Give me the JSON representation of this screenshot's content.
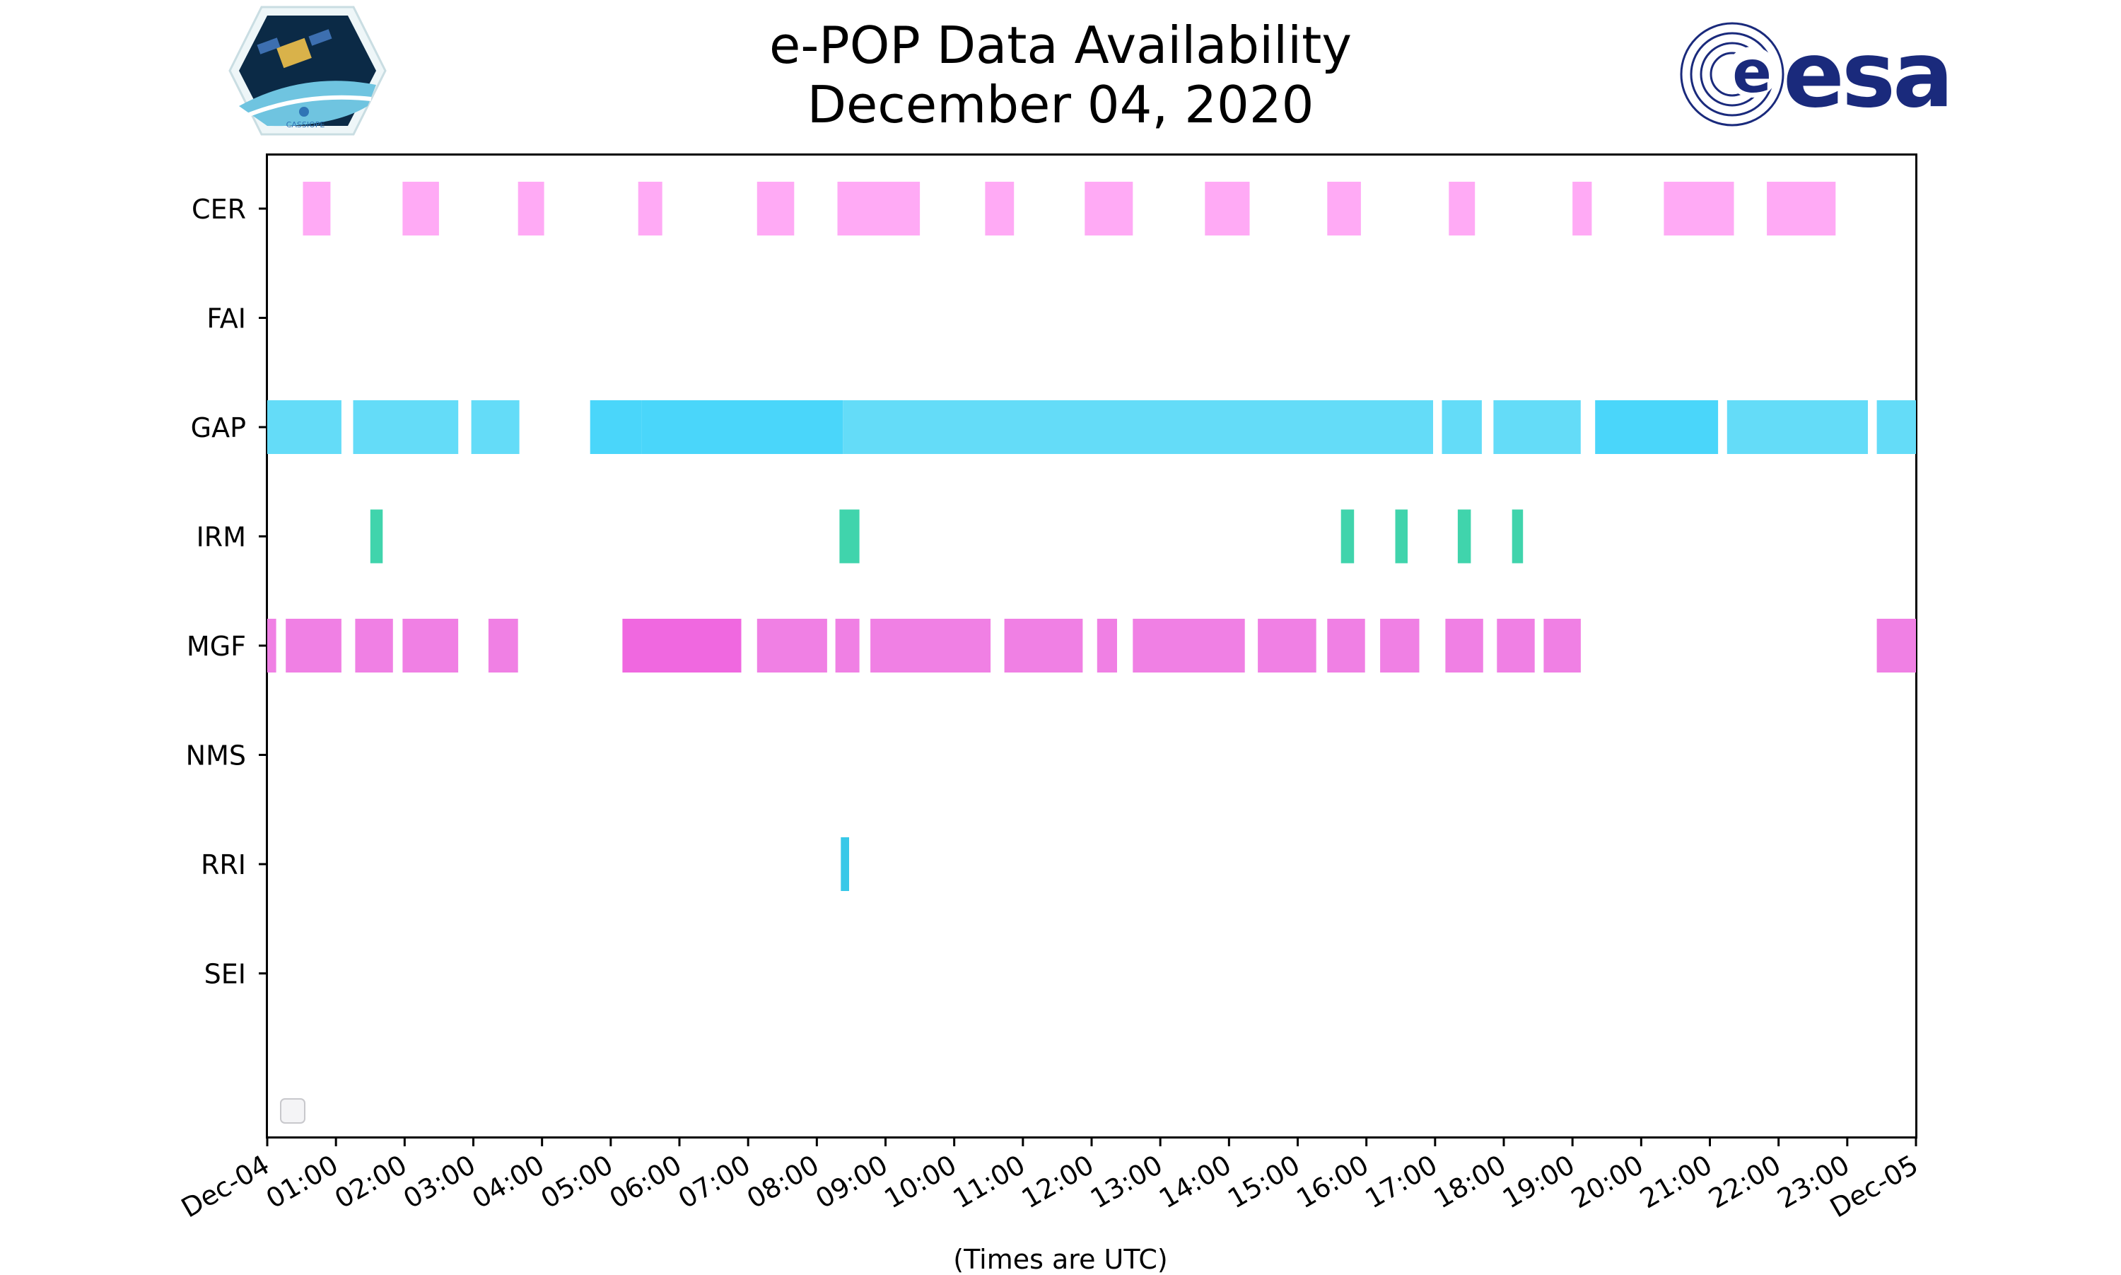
{
  "chart_data": {
    "type": "timeline",
    "title_lines": [
      "e-POP Data Availability",
      "December 04, 2020"
    ],
    "xlabel": "(Times are UTC)",
    "x_range_hours": [
      0,
      24
    ],
    "x_tick_labels": [
      "Dec-04",
      "01:00",
      "02:00",
      "03:00",
      "04:00",
      "05:00",
      "06:00",
      "07:00",
      "08:00",
      "09:00",
      "10:00",
      "11:00",
      "12:00",
      "13:00",
      "14:00",
      "15:00",
      "16:00",
      "17:00",
      "18:00",
      "19:00",
      "20:00",
      "21:00",
      "22:00",
      "23:00",
      "Dec-05"
    ],
    "categories": [
      "CER",
      "FAI",
      "GAP",
      "IRM",
      "MGF",
      "NMS",
      "RRI",
      "SEI"
    ],
    "colors": {
      "CER": "#ffaaf5",
      "FAI": "#ffaaf5",
      "GAP": "#64dcf8",
      "GAP_dark": "#4ad6fa",
      "IRM": "#40d4ac",
      "MGF": "#f080e4",
      "MGF_dark": "#f068e0",
      "NMS": "#f080e4",
      "RRI": "#38c8e8",
      "SEI": "#f080e4"
    },
    "series": [
      {
        "name": "CER",
        "intervals": [
          [
            0.52,
            0.92
          ],
          [
            1.97,
            2.5
          ],
          [
            3.65,
            4.03
          ],
          [
            5.4,
            5.75
          ],
          [
            7.13,
            7.67
          ],
          [
            8.3,
            9.5
          ],
          [
            10.45,
            10.87
          ],
          [
            11.9,
            12.6
          ],
          [
            13.65,
            14.3
          ],
          [
            15.43,
            15.92
          ],
          [
            17.2,
            17.58
          ],
          [
            19.0,
            19.28
          ],
          [
            20.33,
            21.35
          ],
          [
            21.83,
            22.83
          ]
        ]
      },
      {
        "name": "FAI",
        "intervals": []
      },
      {
        "name": "GAP",
        "intervals": [
          [
            0.0,
            1.08
          ],
          [
            1.25,
            2.78
          ],
          [
            2.97,
            3.67
          ],
          [
            4.7,
            5.45,
            "dark"
          ],
          [
            5.45,
            8.38,
            "dark"
          ],
          [
            8.38,
            16.97
          ],
          [
            17.1,
            17.68
          ],
          [
            17.85,
            19.12
          ],
          [
            19.33,
            21.12,
            "dark"
          ],
          [
            21.25,
            23.3
          ],
          [
            23.43,
            24.0
          ]
        ]
      },
      {
        "name": "IRM",
        "intervals": [
          [
            1.5,
            1.68
          ],
          [
            8.33,
            8.62
          ],
          [
            15.63,
            15.82
          ],
          [
            16.42,
            16.6
          ],
          [
            17.33,
            17.52
          ],
          [
            18.12,
            18.28
          ]
        ]
      },
      {
        "name": "MGF",
        "intervals": [
          [
            0.0,
            0.13
          ],
          [
            0.27,
            1.08
          ],
          [
            1.28,
            1.83
          ],
          [
            1.97,
            2.78
          ],
          [
            3.22,
            3.65
          ],
          [
            5.17,
            6.9,
            "dark"
          ],
          [
            7.13,
            8.15
          ],
          [
            8.27,
            8.62
          ],
          [
            8.78,
            10.53
          ],
          [
            10.73,
            11.87
          ],
          [
            12.08,
            12.37
          ],
          [
            12.6,
            14.23
          ],
          [
            14.42,
            15.27
          ],
          [
            15.43,
            15.98
          ],
          [
            16.2,
            16.77
          ],
          [
            17.15,
            17.7
          ],
          [
            17.9,
            18.45
          ],
          [
            18.58,
            19.12
          ],
          [
            23.43,
            24.0
          ]
        ]
      },
      {
        "name": "NMS",
        "intervals": []
      },
      {
        "name": "RRI",
        "intervals": [
          [
            8.35,
            8.47
          ]
        ]
      },
      {
        "name": "SEI",
        "intervals": []
      }
    ]
  },
  "logos": {
    "left_logo_label": "CASSIOPE",
    "right_logo_label": "esa",
    "esa_color": "#1a2a7c"
  }
}
